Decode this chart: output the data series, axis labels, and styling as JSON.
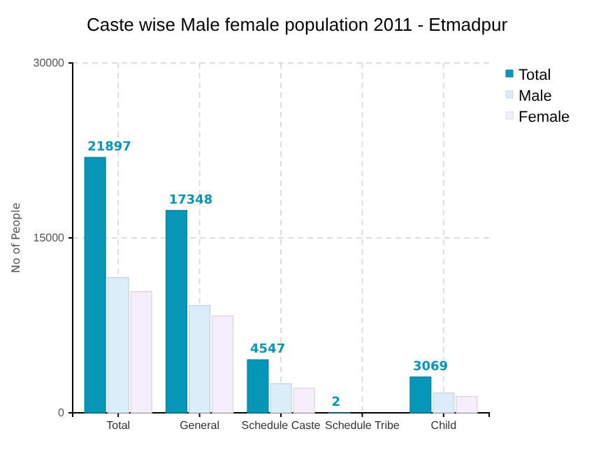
{
  "chart_data": {
    "type": "bar",
    "title": "Caste wise Male female population 2011 - Etmadpur",
    "ylabel": "No of People",
    "categories": [
      "Total",
      "General",
      "Schedule Caste",
      "Schedule Tribe",
      "Child"
    ],
    "series": [
      {
        "name": "Total",
        "color": "#0596b8",
        "values": [
          21897,
          17348,
          4547,
          2,
          3069
        ],
        "value_labels": [
          "21897",
          "17348",
          "4547",
          "2",
          "3069"
        ]
      },
      {
        "name": "Male",
        "color": "#dcedfa",
        "values": [
          11600,
          9200,
          2500,
          null,
          1700
        ]
      },
      {
        "name": "Female",
        "color": "#f6eefc",
        "values": [
          10400,
          8300,
          2100,
          null,
          1400
        ]
      }
    ],
    "ylim": [
      0,
      30000
    ],
    "yticks": [
      0,
      15000,
      30000
    ],
    "grid": true,
    "legend": "top right"
  }
}
